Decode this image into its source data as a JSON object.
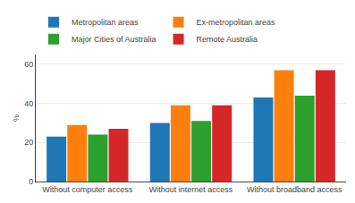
{
  "chart_data": {
    "type": "bar",
    "categories": [
      "Without computer access",
      "Without internet access",
      "Without broadband access"
    ],
    "series": [
      {
        "name": "Metropolitan areas",
        "values": [
          23,
          30,
          43
        ]
      },
      {
        "name": "Ex-metropolitan areas",
        "values": [
          29,
          39,
          57
        ]
      },
      {
        "name": "Major Cities of Australia",
        "values": [
          24,
          31,
          44
        ]
      },
      {
        "name": "Remote Australia",
        "values": [
          27,
          39,
          57
        ]
      }
    ],
    "ylabel": "%",
    "ylim": [
      0,
      65
    ],
    "yticks": [
      0,
      20,
      40,
      60
    ],
    "grid": true,
    "legend": "upper left"
  }
}
